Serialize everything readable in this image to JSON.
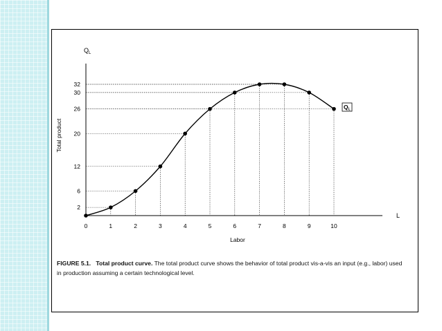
{
  "chart_data": {
    "type": "line",
    "title": "",
    "xlabel": "Labor",
    "ylabel": "Total product",
    "y_axis_symbol": "Q",
    "y_axis_symbol_sub": "L",
    "x_axis_symbol": "L",
    "curve_label": "Q",
    "curve_label_sub": "L",
    "x_ticks": [
      0,
      1,
      2,
      3,
      4,
      5,
      6,
      7,
      8,
      9,
      10
    ],
    "y_ticks": [
      2,
      6,
      12,
      20,
      26,
      30,
      32
    ],
    "series": [
      {
        "x": [
          0,
          1,
          2,
          3,
          4,
          5,
          6,
          7,
          8,
          9,
          10
        ],
        "y": [
          0,
          2,
          6,
          12,
          20,
          26,
          30,
          32,
          32,
          30,
          26
        ]
      }
    ],
    "xlim": [
      0,
      10
    ],
    "ylim": [
      0,
      32
    ],
    "guide_lines": "dotted",
    "grid": false,
    "legend": false
  },
  "caption": {
    "label": "FIGURE 5.1.",
    "bold_title": "Total product curve.",
    "text": "The total product curve shows the behavior of total product vis-a-vis an input (e.g., labor) used in production assuming a certain technological level."
  },
  "colors": {
    "strip": "#cdeff2",
    "ink": "#000000"
  }
}
